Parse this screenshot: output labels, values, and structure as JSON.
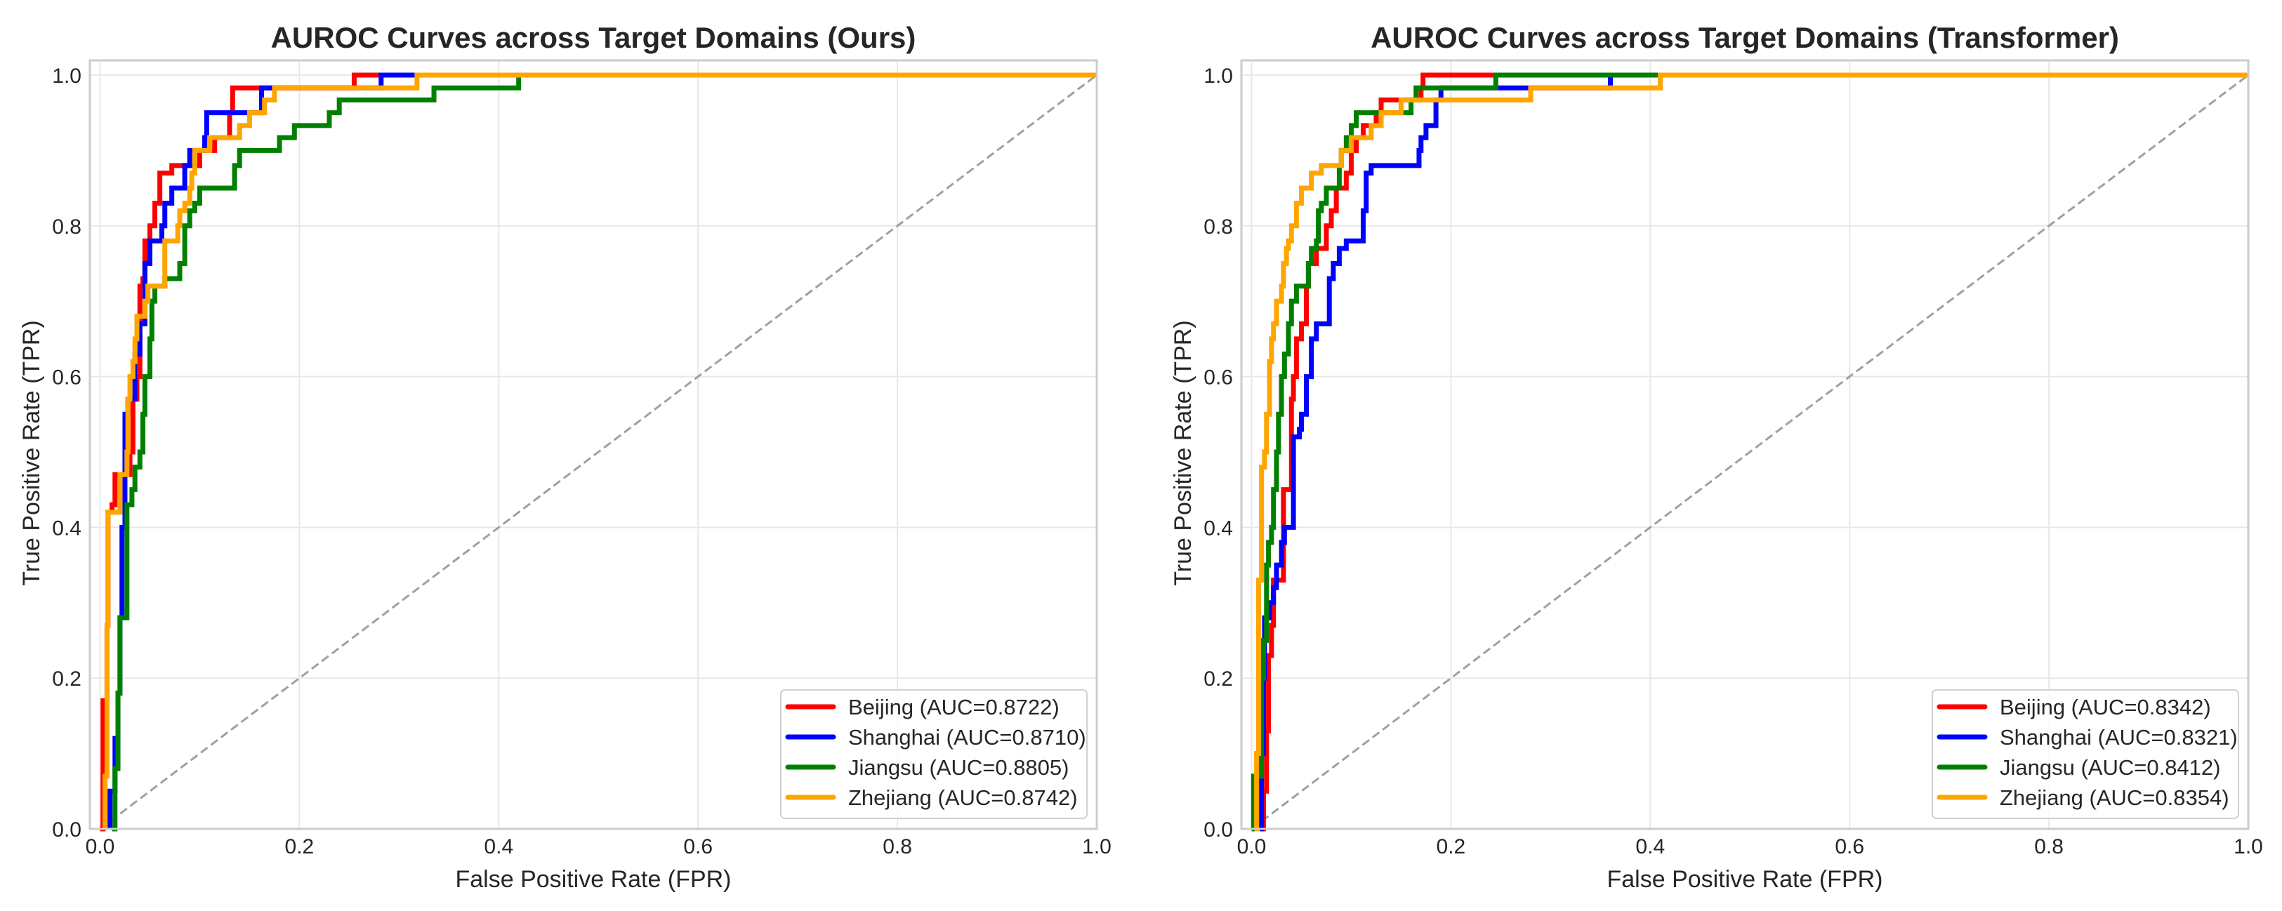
{
  "chart_data": [
    {
      "type": "line",
      "title": "AUROC Curves across Target Domains (Ours)",
      "xlabel": "False Positive Rate (FPR)",
      "ylabel": "True Positive Rate (TPR)",
      "xlim": [
        -0.0102,
        1.0
      ],
      "ylim": [
        0,
        1.0195
      ],
      "xticks": [
        "0.0",
        "0.2",
        "0.4",
        "0.6",
        "0.8",
        "1.0"
      ],
      "yticks": [
        "0.0",
        "0.2",
        "0.4",
        "0.6",
        "0.8",
        "1.0"
      ],
      "grid": true,
      "legend_position": "lower-right",
      "diagonal": "chance line (dashed gray)",
      "series": [
        {
          "name": "Beijing (AUC=0.8722)",
          "color": "#ff0000",
          "points": [
            [
              0,
              0
            ],
            [
              0.003,
              0.07
            ],
            [
              0.003,
              0.17
            ],
            [
              0.007,
              0.27
            ],
            [
              0.008,
              0.42
            ],
            [
              0.012,
              0.43
            ],
            [
              0.015,
              0.47
            ],
            [
              0.025,
              0.47
            ],
            [
              0.03,
              0.5
            ],
            [
              0.033,
              0.57
            ],
            [
              0.037,
              0.6
            ],
            [
              0.04,
              0.65
            ],
            [
              0.04,
              0.72
            ],
            [
              0.043,
              0.73
            ],
            [
              0.045,
              0.78
            ],
            [
              0.05,
              0.8
            ],
            [
              0.055,
              0.83
            ],
            [
              0.06,
              0.87
            ],
            [
              0.072,
              0.88
            ],
            [
              0.085,
              0.88
            ],
            [
              0.1,
              0.9
            ],
            [
              0.115,
              0.917
            ],
            [
              0.13,
              0.933
            ],
            [
              0.13,
              0.95
            ],
            [
              0.133,
              0.983
            ],
            [
              0.255,
              1
            ],
            [
              1,
              1
            ]
          ]
        },
        {
          "name": "Shanghai (AUC=0.8710)",
          "color": "#0000ff",
          "points": [
            [
              0.01,
              0
            ],
            [
              0.01,
              0.05
            ],
            [
              0.015,
              0.08
            ],
            [
              0.015,
              0.12
            ],
            [
              0.018,
              0.18
            ],
            [
              0.02,
              0.28
            ],
            [
              0.022,
              0.4
            ],
            [
              0.025,
              0.55
            ],
            [
              0.028,
              0.57
            ],
            [
              0.035,
              0.6
            ],
            [
              0.035,
              0.63
            ],
            [
              0.04,
              0.67
            ],
            [
              0.045,
              0.7
            ],
            [
              0.045,
              0.75
            ],
            [
              0.05,
              0.78
            ],
            [
              0.062,
              0.8
            ],
            [
              0.065,
              0.83
            ],
            [
              0.072,
              0.85
            ],
            [
              0.085,
              0.88
            ],
            [
              0.09,
              0.9
            ],
            [
              0.105,
              0.917
            ],
            [
              0.107,
              0.95
            ],
            [
              0.162,
              0.983
            ],
            [
              0.282,
              1
            ],
            [
              1,
              1
            ]
          ]
        },
        {
          "name": "Jiangsu (AUC=0.8805)",
          "color": "#008000",
          "points": [
            [
              0.012,
              0
            ],
            [
              0.015,
              0.08
            ],
            [
              0.018,
              0.18
            ],
            [
              0.02,
              0.28
            ],
            [
              0.027,
              0.43
            ],
            [
              0.032,
              0.45
            ],
            [
              0.035,
              0.48
            ],
            [
              0.04,
              0.5
            ],
            [
              0.043,
              0.55
            ],
            [
              0.045,
              0.6
            ],
            [
              0.05,
              0.65
            ],
            [
              0.052,
              0.7
            ],
            [
              0.055,
              0.72
            ],
            [
              0.065,
              0.73
            ],
            [
              0.08,
              0.75
            ],
            [
              0.085,
              0.8
            ],
            [
              0.09,
              0.82
            ],
            [
              0.095,
              0.83
            ],
            [
              0.1,
              0.85
            ],
            [
              0.135,
              0.88
            ],
            [
              0.14,
              0.9
            ],
            [
              0.18,
              0.917
            ],
            [
              0.195,
              0.933
            ],
            [
              0.23,
              0.95
            ],
            [
              0.24,
              0.967
            ],
            [
              0.335,
              0.983
            ],
            [
              0.42,
              1
            ],
            [
              1,
              1
            ]
          ]
        },
        {
          "name": "Zhejiang (AUC=0.8742)",
          "color": "#ffa500",
          "points": [
            [
              0.005,
              0
            ],
            [
              0.005,
              0.07
            ],
            [
              0.007,
              0.27
            ],
            [
              0.008,
              0.42
            ],
            [
              0.02,
              0.47
            ],
            [
              0.027,
              0.5
            ],
            [
              0.028,
              0.57
            ],
            [
              0.03,
              0.6
            ],
            [
              0.033,
              0.62
            ],
            [
              0.035,
              0.65
            ],
            [
              0.037,
              0.68
            ],
            [
              0.045,
              0.7
            ],
            [
              0.048,
              0.72
            ],
            [
              0.065,
              0.78
            ],
            [
              0.078,
              0.8
            ],
            [
              0.08,
              0.82
            ],
            [
              0.085,
              0.83
            ],
            [
              0.09,
              0.85
            ],
            [
              0.092,
              0.87
            ],
            [
              0.095,
              0.9
            ],
            [
              0.11,
              0.917
            ],
            [
              0.14,
              0.933
            ],
            [
              0.15,
              0.95
            ],
            [
              0.165,
              0.967
            ],
            [
              0.175,
              0.983
            ],
            [
              0.318,
              1
            ],
            [
              1,
              1
            ]
          ]
        }
      ]
    },
    {
      "type": "line",
      "title": "AUROC Curves across Target Domains (Transformer)",
      "xlabel": "False Positive Rate (FPR)",
      "ylabel": "True Positive Rate (TPR)",
      "xlim": [
        -0.0102,
        1.0
      ],
      "ylim": [
        0,
        1.0195
      ],
      "xticks": [
        "0.0",
        "0.2",
        "0.4",
        "0.6",
        "0.8",
        "1.0"
      ],
      "yticks": [
        "0.0",
        "0.2",
        "0.4",
        "0.6",
        "0.8",
        "1.0"
      ],
      "grid": true,
      "legend_position": "lower-right",
      "diagonal": "chance line (dashed gray)",
      "series": [
        {
          "name": "Beijing (AUC=0.8342)",
          "color": "#ff0000",
          "points": [
            [
              0.01,
              0
            ],
            [
              0.012,
              0.05
            ],
            [
              0.015,
              0.13
            ],
            [
              0.017,
              0.23
            ],
            [
              0.02,
              0.27
            ],
            [
              0.022,
              0.33
            ],
            [
              0.032,
              0.45
            ],
            [
              0.04,
              0.57
            ],
            [
              0.042,
              0.6
            ],
            [
              0.045,
              0.65
            ],
            [
              0.05,
              0.67
            ],
            [
              0.055,
              0.72
            ],
            [
              0.057,
              0.75
            ],
            [
              0.065,
              0.77
            ],
            [
              0.075,
              0.8
            ],
            [
              0.08,
              0.82
            ],
            [
              0.085,
              0.85
            ],
            [
              0.095,
              0.87
            ],
            [
              0.1,
              0.9
            ],
            [
              0.105,
              0.917
            ],
            [
              0.112,
              0.933
            ],
            [
              0.125,
              0.95
            ],
            [
              0.13,
              0.967
            ],
            [
              0.17,
              0.983
            ],
            [
              0.172,
              1
            ],
            [
              1,
              1
            ]
          ]
        },
        {
          "name": "Shanghai (AUC=0.8321)",
          "color": "#0000ff",
          "points": [
            [
              0.008,
              0
            ],
            [
              0.01,
              0.1
            ],
            [
              0.012,
              0.2
            ],
            [
              0.013,
              0.28
            ],
            [
              0.018,
              0.3
            ],
            [
              0.022,
              0.32
            ],
            [
              0.025,
              0.35
            ],
            [
              0.03,
              0.38
            ],
            [
              0.033,
              0.4
            ],
            [
              0.042,
              0.52
            ],
            [
              0.048,
              0.53
            ],
            [
              0.05,
              0.55
            ],
            [
              0.055,
              0.6
            ],
            [
              0.06,
              0.65
            ],
            [
              0.065,
              0.67
            ],
            [
              0.078,
              0.73
            ],
            [
              0.082,
              0.75
            ],
            [
              0.088,
              0.77
            ],
            [
              0.095,
              0.78
            ],
            [
              0.112,
              0.82
            ],
            [
              0.115,
              0.87
            ],
            [
              0.12,
              0.88
            ],
            [
              0.168,
              0.9
            ],
            [
              0.17,
              0.917
            ],
            [
              0.175,
              0.933
            ],
            [
              0.185,
              0.967
            ],
            [
              0.19,
              0.983
            ],
            [
              0.36,
              1
            ],
            [
              1,
              1
            ]
          ]
        },
        {
          "name": "Jiangsu (AUC=0.8412)",
          "color": "#008000",
          "points": [
            [
              0,
              0
            ],
            [
              0.002,
              0.07
            ],
            [
              0.01,
              0.2
            ],
            [
              0.012,
              0.25
            ],
            [
              0.015,
              0.35
            ],
            [
              0.017,
              0.38
            ],
            [
              0.02,
              0.4
            ],
            [
              0.022,
              0.45
            ],
            [
              0.025,
              0.5
            ],
            [
              0.027,
              0.55
            ],
            [
              0.03,
              0.6
            ],
            [
              0.033,
              0.63
            ],
            [
              0.037,
              0.67
            ],
            [
              0.04,
              0.7
            ],
            [
              0.045,
              0.72
            ],
            [
              0.057,
              0.75
            ],
            [
              0.06,
              0.77
            ],
            [
              0.065,
              0.78
            ],
            [
              0.067,
              0.82
            ],
            [
              0.07,
              0.83
            ],
            [
              0.075,
              0.85
            ],
            [
              0.088,
              0.88
            ],
            [
              0.09,
              0.9
            ],
            [
              0.095,
              0.917
            ],
            [
              0.1,
              0.933
            ],
            [
              0.105,
              0.95
            ],
            [
              0.16,
              0.967
            ],
            [
              0.165,
              0.983
            ],
            [
              0.245,
              1
            ],
            [
              1,
              1
            ]
          ]
        },
        {
          "name": "Zhejiang (AUC=0.8354)",
          "color": "#ffa500",
          "points": [
            [
              0.003,
              0
            ],
            [
              0.005,
              0.1
            ],
            [
              0.007,
              0.33
            ],
            [
              0.01,
              0.48
            ],
            [
              0.013,
              0.5
            ],
            [
              0.015,
              0.55
            ],
            [
              0.018,
              0.62
            ],
            [
              0.02,
              0.65
            ],
            [
              0.022,
              0.67
            ],
            [
              0.025,
              0.7
            ],
            [
              0.03,
              0.72
            ],
            [
              0.032,
              0.75
            ],
            [
              0.035,
              0.77
            ],
            [
              0.037,
              0.78
            ],
            [
              0.04,
              0.8
            ],
            [
              0.045,
              0.83
            ],
            [
              0.05,
              0.85
            ],
            [
              0.06,
              0.87
            ],
            [
              0.07,
              0.88
            ],
            [
              0.09,
              0.9
            ],
            [
              0.1,
              0.917
            ],
            [
              0.12,
              0.933
            ],
            [
              0.13,
              0.95
            ],
            [
              0.15,
              0.967
            ],
            [
              0.28,
              0.983
            ],
            [
              0.41,
              1
            ],
            [
              1,
              1
            ]
          ]
        }
      ]
    }
  ]
}
